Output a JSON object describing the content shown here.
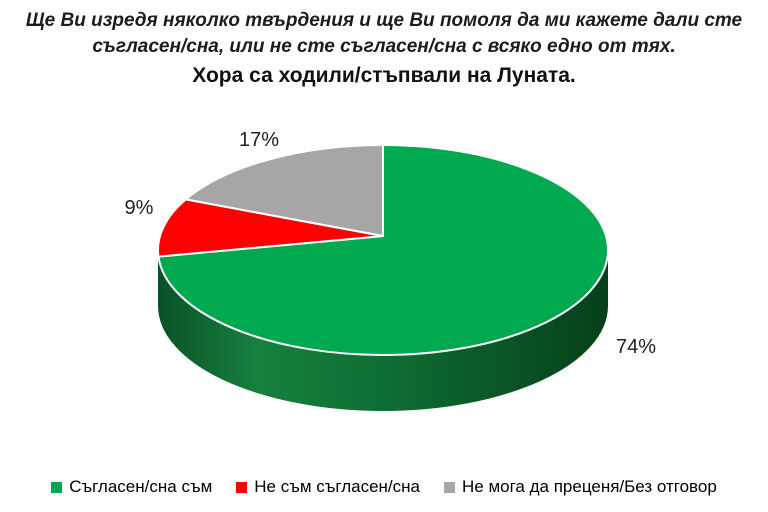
{
  "title": {
    "line1": "Ще Ви изредя няколко твърдения и ще Ви помоля да ми кажете дали сте",
    "line2": "съгласен/сна, или не сте съгласен/сна с всяко едно от тях.",
    "line3": "Хора са ходили/стъпвали на Луната."
  },
  "chart_data": {
    "type": "pie",
    "style": "3d-exploded-none",
    "question": "Ще Ви изредя няколко твърдения и ще Ви помоля да ми кажете дали сте съгласен/сна, или не сте съгласен/сна с всяко едно от тях.",
    "title": "Хора са ходили/стъпвали на Луната.",
    "start_angle_deg": 0,
    "direction": "clockwise",
    "data_labels": "outside-percent",
    "legend_position": "bottom",
    "slices": [
      {
        "label": "Съгласен/сна съм",
        "value": 74,
        "display": "74%",
        "color": "#00A850"
      },
      {
        "label": "Не съм съгласен/сна",
        "value": 9,
        "display": "9%",
        "color": "#FF0000"
      },
      {
        "label": "Не мога да преценя/Без отговор",
        "value": 17,
        "display": "17%",
        "color": "#A6A6A6"
      }
    ]
  },
  "colors": {
    "background": "#FFFFFF",
    "label_text": "#1F1F1F",
    "slice_stroke": "#FFFFFF",
    "side_gradient": [
      "#0A5127",
      "#16813E",
      "#0E6F33",
      "#063F1B"
    ]
  }
}
